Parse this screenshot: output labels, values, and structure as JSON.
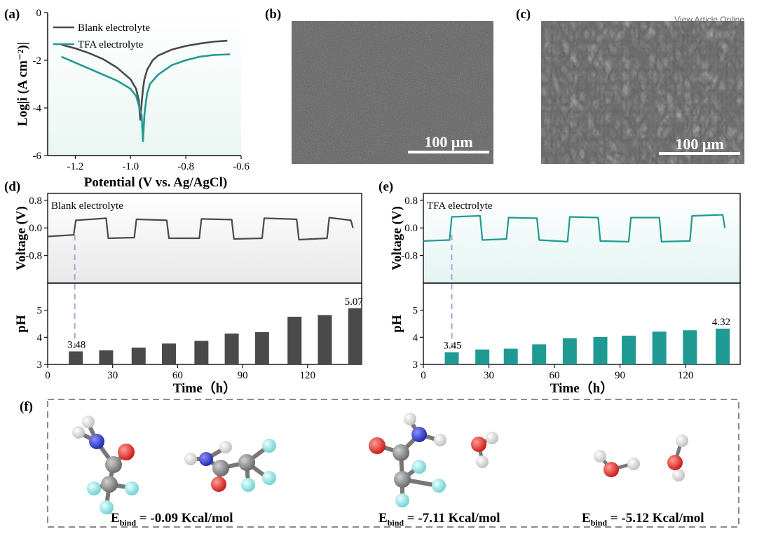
{
  "panel_labels": {
    "a": "(a)",
    "b": "(b)",
    "c": "(c)",
    "d": "(d)",
    "e": "(e)",
    "f": "(f)"
  },
  "sem": {
    "b_scale": "100 μm",
    "c_scale": "100 μm",
    "watermark": "View Article Online"
  },
  "binding": {
    "e1_label": "E",
    "e1_sub": "bind",
    "e1_value": " = -0.09 Kcal/mol",
    "e2_label": "E",
    "e2_sub": "bind",
    "e2_value": " = -7.11 Kcal/mol",
    "e3_label": "E",
    "e3_sub": "bind",
    "e3_value": " = -5.12 Kcal/mol"
  },
  "colors": {
    "blank": "#4a4a4a",
    "tfa": "#1f9a93",
    "dashed_marker": "#b79ad9",
    "oxygen": "#e0201b",
    "nitrogen": "#2a34c8",
    "carbon": "#8c8c8c",
    "fluorine": "#8fe0e0",
    "hydrogen": "#f2f2f2"
  },
  "chart_data": [
    {
      "id": "a",
      "type": "line",
      "xlabel": "Potential (V vs. Ag/AgCl)",
      "ylabel": "Log|i (A cm⁻²)|",
      "xlim": [
        -1.3,
        -0.6
      ],
      "ylim": [
        -6,
        0
      ],
      "xticks": [
        -1.2,
        -1.0,
        -0.8,
        -0.6
      ],
      "xtick_labels": [
        "-1.2",
        "-1.0",
        "-0.8",
        "-0.6"
      ],
      "yticks": [
        -6,
        -4,
        -2,
        0
      ],
      "ytick_labels": [
        "-6",
        "-4",
        "-2",
        "0"
      ],
      "legend": "top-left",
      "series": [
        {
          "name": "Blank electrolyte",
          "color": "#4a4a4a",
          "x": [
            -1.25,
            -1.2,
            -1.15,
            -1.1,
            -1.05,
            -1.0,
            -0.98,
            -0.97,
            -0.965,
            -0.96,
            -0.955,
            -0.95,
            -0.94,
            -0.92,
            -0.9,
            -0.85,
            -0.8,
            -0.75,
            -0.7,
            -0.65
          ],
          "y": [
            -1.35,
            -1.5,
            -1.7,
            -1.95,
            -2.3,
            -2.8,
            -3.2,
            -3.7,
            -4.5,
            -3.8,
            -3.2,
            -2.8,
            -2.4,
            -2.0,
            -1.8,
            -1.55,
            -1.4,
            -1.3,
            -1.22,
            -1.18
          ]
        },
        {
          "name": "TFA electrolyte",
          "color": "#1f9a93",
          "x": [
            -1.25,
            -1.2,
            -1.15,
            -1.1,
            -1.05,
            -1.0,
            -0.98,
            -0.97,
            -0.96,
            -0.955,
            -0.95,
            -0.945,
            -0.94,
            -0.93,
            -0.9,
            -0.85,
            -0.8,
            -0.75,
            -0.7,
            -0.64
          ],
          "y": [
            -1.85,
            -2.1,
            -2.35,
            -2.6,
            -2.85,
            -3.2,
            -3.5,
            -3.9,
            -4.3,
            -5.4,
            -4.3,
            -3.8,
            -3.4,
            -3.0,
            -2.6,
            -2.2,
            -2.0,
            -1.85,
            -1.78,
            -1.75
          ]
        }
      ]
    },
    {
      "id": "d",
      "type": "line+bar",
      "inner_label": "Blank electrolyte",
      "xlabel": "Time（h）",
      "ylabel_voltage": "Voltage (V)",
      "ylabel_ph": "pH",
      "xlim": [
        0,
        145
      ],
      "xticks": [
        0,
        30,
        60,
        90,
        120
      ],
      "xtick_labels": [
        "0",
        "30",
        "60",
        "90",
        "120"
      ],
      "voltage_ylim": [
        -1.6,
        1.0
      ],
      "voltage_yticks": [
        -0.8,
        0.0,
        0.8
      ],
      "voltage_ytick_labels": [
        "-0.8",
        "0.0",
        "0.8"
      ],
      "ph_ylim": [
        3,
        6
      ],
      "ph_yticks": [
        3,
        4,
        5
      ],
      "ph_ytick_labels": [
        "3",
        "4",
        "5"
      ],
      "marker_x": 12.5,
      "voltage": {
        "x": [
          0,
          12,
          13,
          27,
          28,
          40,
          41,
          55,
          56,
          70,
          71,
          85,
          86,
          99,
          100,
          115,
          116,
          129,
          130,
          140,
          141
        ],
        "y": [
          -0.25,
          -0.2,
          0.22,
          0.28,
          -0.3,
          -0.28,
          0.25,
          0.22,
          -0.3,
          -0.3,
          0.26,
          0.24,
          -0.32,
          -0.3,
          0.28,
          0.25,
          -0.34,
          -0.3,
          0.3,
          0.22,
          0.0
        ]
      },
      "bars": {
        "x": [
          13,
          27,
          42,
          56,
          71,
          85,
          99,
          114,
          128,
          142
        ],
        "values": [
          3.48,
          3.52,
          3.62,
          3.77,
          3.87,
          4.14,
          4.19,
          4.76,
          4.82,
          5.07
        ],
        "labels": {
          "0": "3.48",
          "9": "5.07"
        }
      }
    },
    {
      "id": "e",
      "type": "line+bar",
      "inner_label": "TFA electrolyte",
      "xlabel": "Time（h）",
      "ylabel_voltage": "Voltage (V)",
      "ylabel_ph": "pH",
      "xlim": [
        0,
        145
      ],
      "xticks": [
        0,
        30,
        60,
        90,
        120
      ],
      "xtick_labels": [
        "0",
        "30",
        "60",
        "90",
        "120"
      ],
      "voltage_ylim": [
        -1.6,
        1.0
      ],
      "voltage_yticks": [
        -0.8,
        0.0,
        0.8
      ],
      "voltage_ytick_labels": [
        "-0.8",
        "0.0",
        "0.8"
      ],
      "ph_ylim": [
        3,
        6
      ],
      "ph_yticks": [
        3,
        4,
        5
      ],
      "ph_ytick_labels": [
        "3",
        "4",
        "5"
      ],
      "marker_x": 13,
      "voltage": {
        "x": [
          0,
          12,
          13,
          26,
          27,
          38,
          39,
          52,
          53,
          66,
          67,
          80,
          81,
          94,
          95,
          108,
          109,
          122,
          123,
          137,
          138
        ],
        "y": [
          -0.38,
          -0.35,
          0.32,
          0.35,
          -0.35,
          -0.32,
          0.3,
          0.28,
          -0.35,
          -0.4,
          0.32,
          0.3,
          -0.38,
          -0.4,
          0.3,
          0.3,
          -0.4,
          -0.38,
          0.35,
          0.38,
          0.0
        ]
      },
      "bars": {
        "x": [
          13,
          27,
          40,
          53,
          67,
          81,
          94,
          108,
          122,
          137
        ],
        "values": [
          3.45,
          3.55,
          3.58,
          3.74,
          3.97,
          4.01,
          4.06,
          4.21,
          4.26,
          4.32
        ],
        "labels": {
          "0": "3.45",
          "9": "4.32"
        }
      }
    }
  ]
}
